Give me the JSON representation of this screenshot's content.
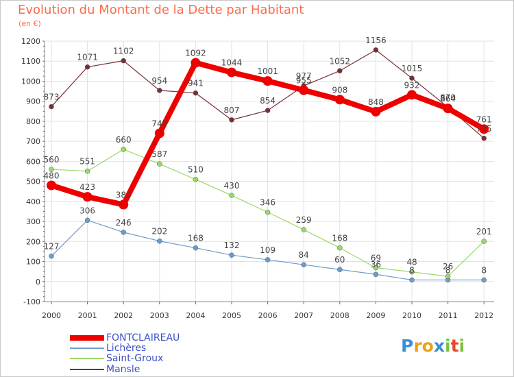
{
  "title": "Evolution du Montant de la Dette par Habitant",
  "unit_label": "(en €)",
  "logo": {
    "letters": [
      {
        "ch": "P",
        "color": "#3a8fd8"
      },
      {
        "ch": "r",
        "color": "#e8a21c"
      },
      {
        "ch": "o",
        "color": "#e8a21c"
      },
      {
        "ch": "x",
        "color": "#3a8fd8"
      },
      {
        "ch": "i",
        "color": "#7cc242"
      },
      {
        "ch": "t",
        "color": "#e84b2a"
      },
      {
        "ch": "i",
        "color": "#7cc242"
      }
    ]
  },
  "chart_data": {
    "type": "line",
    "title": "Evolution du Montant de la Dette par Habitant",
    "ylabel": "(en €)",
    "xlabel": "",
    "ylim": [
      -100,
      1200
    ],
    "yticks": [
      "-100",
      "0",
      "100",
      "200",
      "300",
      "400",
      "500",
      "600",
      "700",
      "800",
      "900",
      "1000",
      "1100",
      "1200"
    ],
    "x": [
      "2000",
      "2001",
      "2002",
      "2003",
      "2004",
      "2005",
      "2006",
      "2007",
      "2008",
      "2009",
      "2010",
      "2011",
      "2012"
    ],
    "grid": true,
    "legend_position": "bottom-left",
    "series": [
      {
        "name": "FONTCLAIREAU",
        "color": "#ee0000",
        "style": "thick",
        "values": [
          480,
          423,
          384,
          740,
          1092,
          1044,
          1001,
          955,
          908,
          848,
          932,
          864,
          761
        ],
        "labels": [
          "480",
          "423",
          "384",
          "740",
          "1092",
          "1044",
          "1001",
          "955",
          "908",
          "848",
          "932",
          "864",
          "761"
        ]
      },
      {
        "name": "Lichères",
        "color": "#6e9ccb",
        "style": "thin",
        "values": [
          127,
          306,
          246,
          202,
          168,
          132,
          109,
          84,
          60,
          36,
          8,
          8,
          8
        ],
        "labels": [
          "127",
          "306",
          "246",
          "202",
          "168",
          "132",
          "109",
          "84",
          "60",
          "36",
          "8",
          "8",
          "8"
        ]
      },
      {
        "name": "Saint-Groux",
        "color": "#9ad86a",
        "style": "thin",
        "values": [
          560,
          551,
          660,
          587,
          510,
          430,
          346,
          259,
          168,
          69,
          48,
          26,
          201
        ],
        "labels": [
          "560",
          "551",
          "660",
          "587",
          "510",
          "430",
          "346",
          "259",
          "168",
          "69",
          "48",
          "26",
          "201"
        ]
      },
      {
        "name": "Mansle",
        "color": "#7a2e36",
        "style": "thin",
        "values": [
          873,
          1071,
          1102,
          954,
          941,
          807,
          854,
          977,
          1052,
          1156,
          1015,
          870,
          715
        ],
        "labels": [
          "873",
          "1071",
          "1102",
          "954",
          "941",
          "807",
          "854",
          "977",
          "1052",
          "1156",
          "1015",
          "870",
          "715"
        ]
      }
    ]
  }
}
